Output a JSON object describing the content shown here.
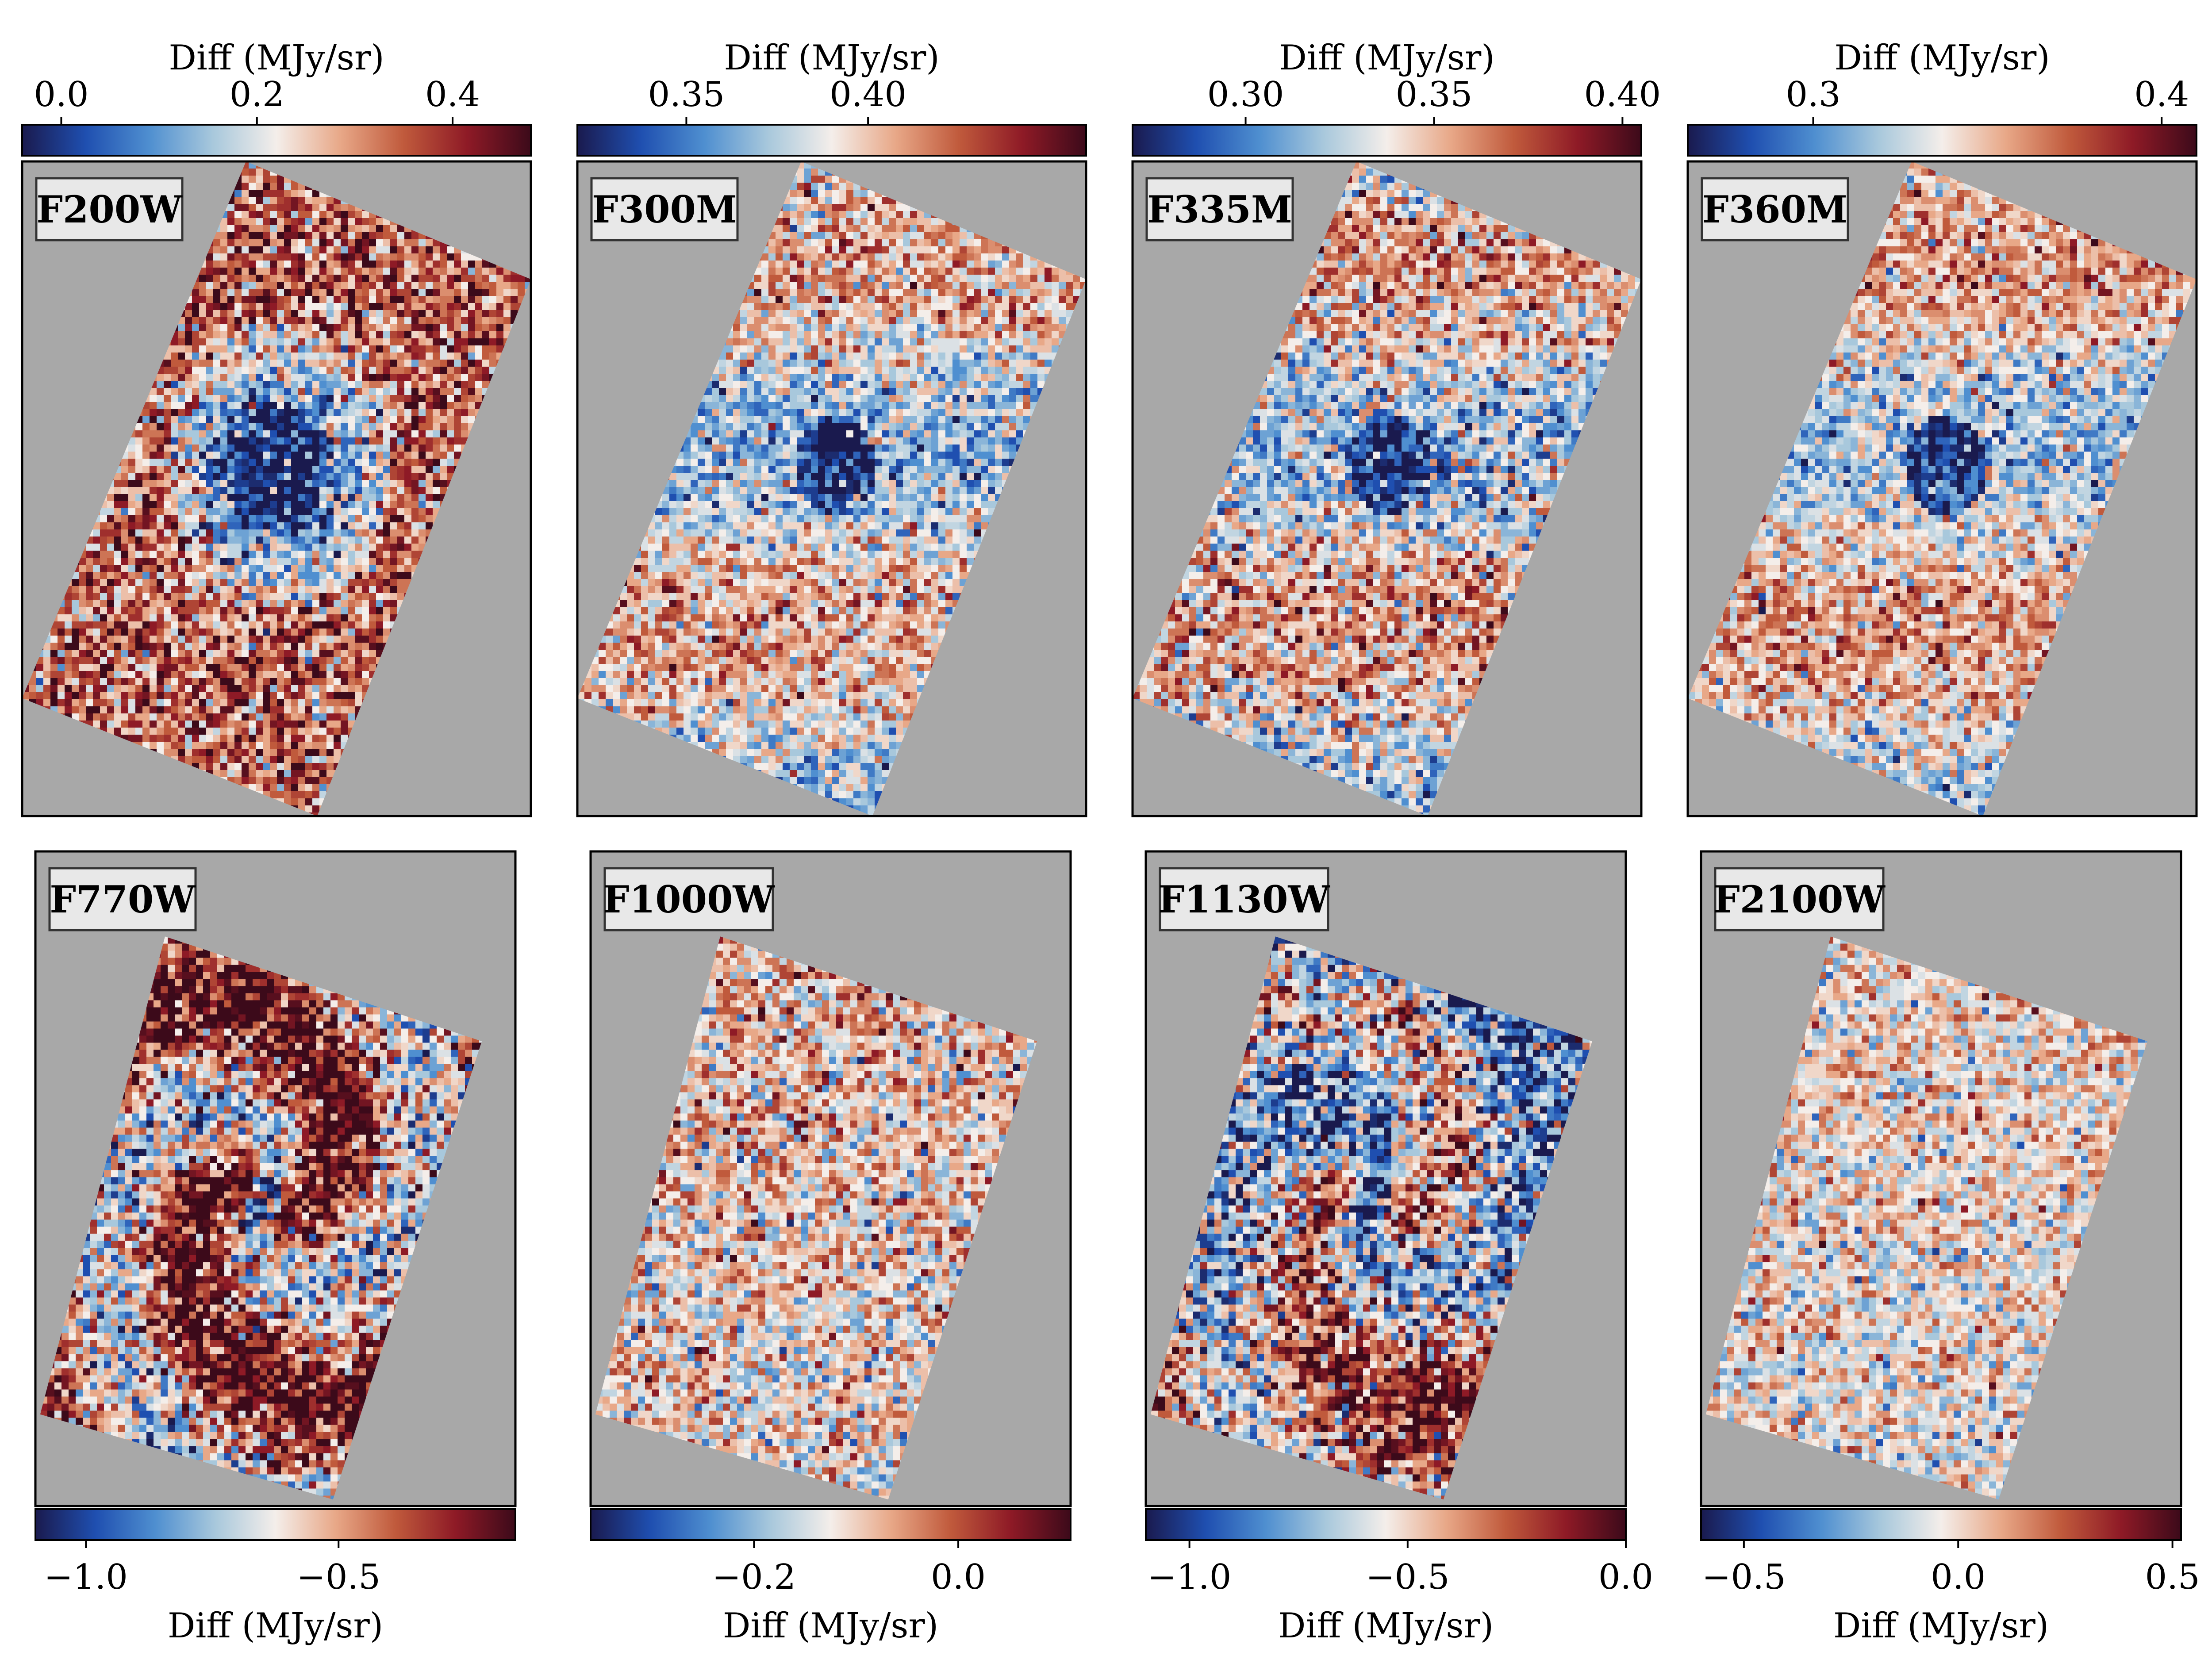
{
  "colors": {
    "background_gray": "#a8a8a8",
    "colormap": [
      "#1a1a4e",
      "#1f4fb0",
      "#4f8fd0",
      "#a8c8dc",
      "#f4eeea",
      "#e8a888",
      "#c05a3c",
      "#8e1a26",
      "#3c0a1a"
    ],
    "frame": "#000000",
    "label_box_fill": "#e8e8e8"
  },
  "figure": {
    "colorbar_label": "Diff (MJy/sr)"
  },
  "panels": [
    {
      "id": "f200w",
      "filter": "F200W",
      "cbar": {
        "position": "top",
        "label": "Diff (MJy/sr)",
        "min": -0.04,
        "max": 0.48,
        "ticks": [
          {
            "v": 0.0,
            "t": "0.0"
          },
          {
            "v": 0.2,
            "t": "0.2"
          },
          {
            "v": 0.4,
            "t": "0.4"
          }
        ]
      },
      "map": {
        "pattern": "center-hole",
        "mean": 0.72,
        "contrast": 0.35
      }
    },
    {
      "id": "f300m",
      "filter": "F300M",
      "cbar": {
        "position": "top",
        "label": "Diff (MJy/sr)",
        "min": 0.32,
        "max": 0.46,
        "ticks": [
          {
            "v": 0.35,
            "t": "0.35"
          },
          {
            "v": 0.4,
            "t": "0.40"
          }
        ]
      },
      "map": {
        "pattern": "noise-bands",
        "mean": 0.48,
        "contrast": 0.28
      }
    },
    {
      "id": "f335m",
      "filter": "F335M",
      "cbar": {
        "position": "top",
        "label": "Diff (MJy/sr)",
        "min": 0.27,
        "max": 0.405,
        "ticks": [
          {
            "v": 0.3,
            "t": "0.30"
          },
          {
            "v": 0.35,
            "t": "0.35"
          },
          {
            "v": 0.4,
            "t": "0.40"
          }
        ]
      },
      "map": {
        "pattern": "noise-bands",
        "mean": 0.5,
        "contrast": 0.3
      }
    },
    {
      "id": "f360m",
      "filter": "F360M",
      "cbar": {
        "position": "top",
        "label": "Diff (MJy/sr)",
        "min": 0.264,
        "max": 0.41,
        "ticks": [
          {
            "v": 0.3,
            "t": "0.3"
          },
          {
            "v": 0.4,
            "t": "0.4"
          }
        ]
      },
      "map": {
        "pattern": "noise-bands",
        "mean": 0.5,
        "contrast": 0.26
      }
    },
    {
      "id": "f770w",
      "filter": "F770W",
      "cbar": {
        "position": "bottom",
        "label": "Diff (MJy/sr)",
        "min": -1.1,
        "max": -0.15,
        "ticks": [
          {
            "v": -1.0,
            "t": "−1.0"
          },
          {
            "v": -0.5,
            "t": "−0.5"
          }
        ]
      },
      "map": {
        "pattern": "spiral",
        "mean": 0.7,
        "contrast": 0.4
      }
    },
    {
      "id": "f1000w",
      "filter": "F1000W",
      "cbar": {
        "position": "bottom",
        "label": "Diff (MJy/sr)",
        "min": -0.36,
        "max": 0.11,
        "ticks": [
          {
            "v": -0.2,
            "t": "−0.2"
          },
          {
            "v": 0.0,
            "t": "0.0"
          }
        ]
      },
      "map": {
        "pattern": "noise",
        "mean": 0.55,
        "contrast": 0.3
      }
    },
    {
      "id": "f1130w",
      "filter": "F1130W",
      "cbar": {
        "position": "bottom",
        "label": "Diff (MJy/sr)",
        "min": -1.1,
        "max": 0.0,
        "ticks": [
          {
            "v": -1.0,
            "t": "−1.0"
          },
          {
            "v": -0.5,
            "t": "−0.5"
          },
          {
            "v": 0.0,
            "t": "0.0"
          }
        ]
      },
      "map": {
        "pattern": "spiral-soft",
        "mean": 0.5,
        "contrast": 0.42
      }
    },
    {
      "id": "f2100w",
      "filter": "F2100W",
      "cbar": {
        "position": "bottom",
        "label": "Diff (MJy/sr)",
        "min": -0.6,
        "max": 0.52,
        "ticks": [
          {
            "v": -0.5,
            "t": "−0.5"
          },
          {
            "v": 0.0,
            "t": "0.0"
          },
          {
            "v": 0.5,
            "t": "0.5"
          }
        ]
      },
      "map": {
        "pattern": "noise",
        "mean": 0.52,
        "contrast": 0.25
      }
    }
  ]
}
